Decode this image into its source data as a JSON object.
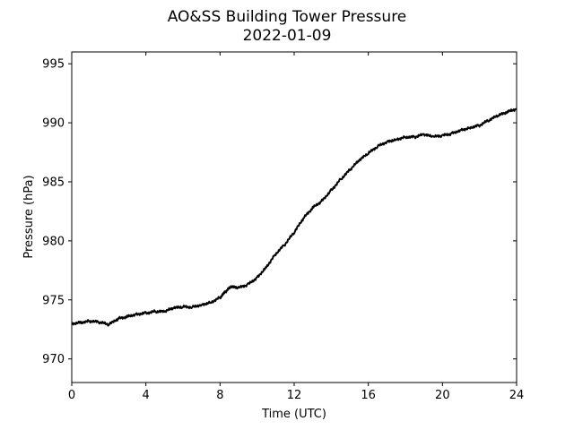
{
  "chart_data": {
    "type": "line",
    "title": "AO&SS Building Tower Pressure",
    "subtitle": "2022-01-09",
    "xlabel": "Time (UTC)",
    "ylabel": "Pressure (hPa)",
    "xlim": [
      0,
      24
    ],
    "ylim": [
      968,
      996
    ],
    "xticks": [
      0,
      4,
      8,
      12,
      16,
      20,
      24
    ],
    "yticks": [
      970,
      975,
      980,
      985,
      990,
      995
    ],
    "grid": false,
    "line_color": "#000000",
    "series": [
      {
        "x": [
          0,
          0.5,
          1,
          1.5,
          2,
          2.5,
          3,
          3.5,
          4,
          4.5,
          5,
          5.5,
          6,
          6.5,
          7,
          7.5,
          8,
          8.3,
          8.6,
          9,
          9.5,
          10,
          10.5,
          11,
          11.5,
          12,
          12.5,
          13,
          13.5,
          14,
          14.5,
          15,
          15.5,
          16,
          16.5,
          17,
          17.5,
          18,
          18.5,
          19,
          19.5,
          20,
          20.5,
          21,
          21.5,
          22,
          22.5,
          23,
          23.5,
          24
        ],
        "y": [
          973.0,
          973.1,
          973.2,
          973.1,
          972.9,
          973.4,
          973.6,
          973.8,
          973.9,
          974.0,
          974.0,
          974.3,
          974.4,
          974.4,
          974.6,
          974.8,
          975.2,
          975.7,
          976.1,
          976.0,
          976.3,
          976.9,
          977.8,
          978.9,
          979.7,
          980.7,
          981.9,
          982.8,
          983.4,
          984.3,
          985.2,
          986.0,
          986.8,
          987.4,
          988.0,
          988.4,
          988.6,
          988.8,
          988.8,
          989.0,
          988.8,
          988.9,
          989.1,
          989.4,
          989.6,
          989.8,
          990.2,
          990.6,
          990.9,
          991.2
        ]
      }
    ]
  }
}
